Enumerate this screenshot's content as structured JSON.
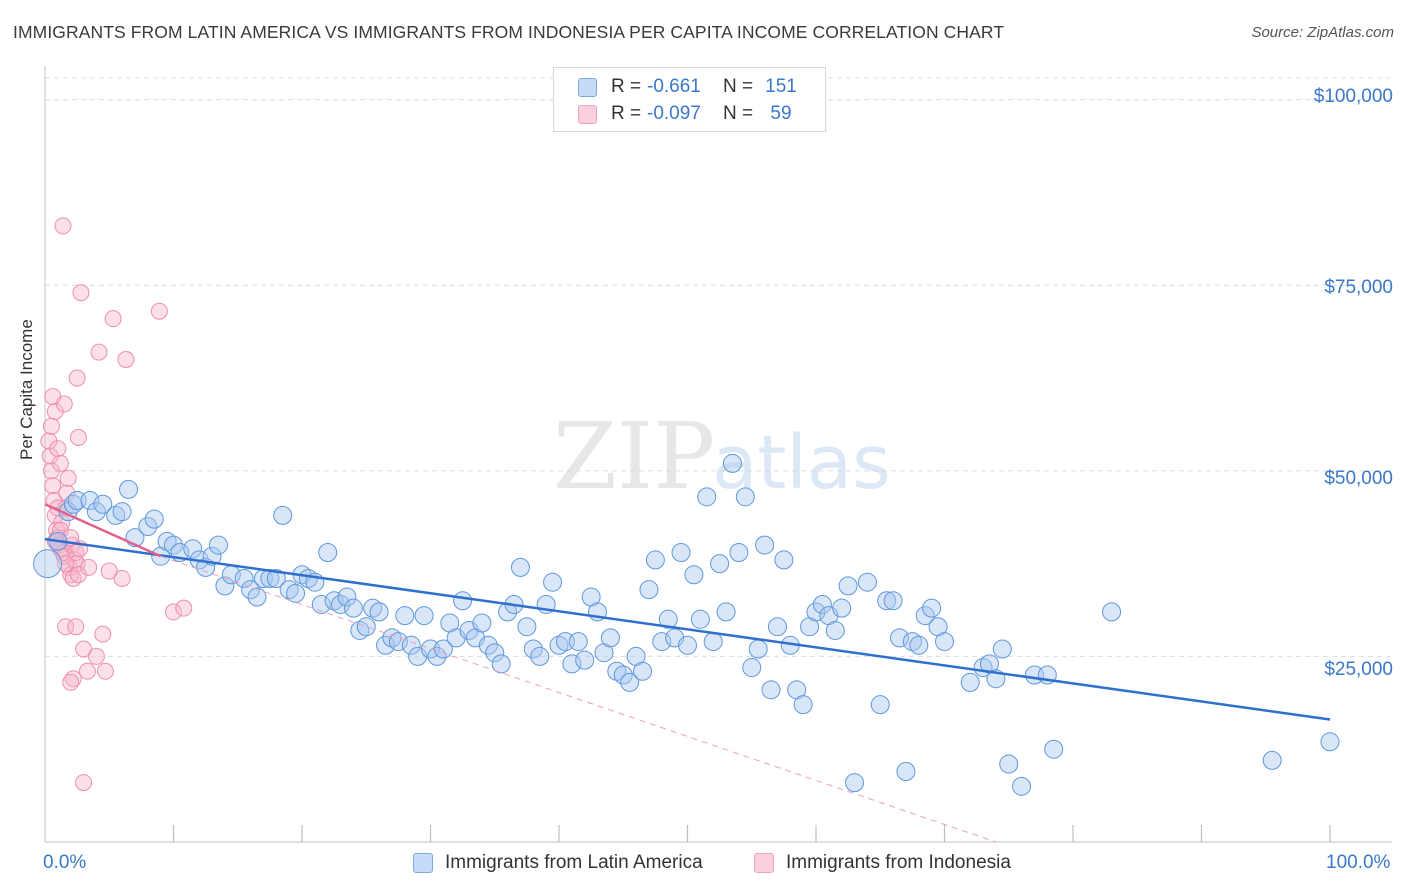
{
  "header": {
    "title": "IMMIGRANTS FROM LATIN AMERICA VS IMMIGRANTS FROM INDONESIA PER CAPITA INCOME CORRELATION CHART",
    "source": "Source: ZipAtlas.com"
  },
  "watermark": {
    "zip": "ZIP",
    "atlas": "atlas"
  },
  "legend": {
    "r_label": "R =",
    "n_label": "N =",
    "rows": [
      {
        "r": "-0.661",
        "n": "151",
        "color": "#6fa3e0"
      },
      {
        "r": "-0.097",
        "n": "59",
        "color": "#f29ab5"
      }
    ]
  },
  "axis": {
    "y_title": "Per Capita Income",
    "y_ticks": [
      "$100,000",
      "$75,000",
      "$50,000",
      "$25,000"
    ],
    "x_min_label": "0.0%",
    "x_max_label": "100.0%"
  },
  "bottom_legend": {
    "series1": "Immigrants from Latin America",
    "series2": "Immigrants from Indonesia"
  },
  "chart_data": {
    "type": "scatter",
    "title": "IMMIGRANTS FROM LATIN AMERICA VS IMMIGRANTS FROM INDONESIA PER CAPITA INCOME CORRELATION CHART",
    "xlabel": "",
    "ylabel": "Per Capita Income",
    "xlim": [
      0,
      100
    ],
    "ylim": [
      0,
      104000
    ],
    "y_ticks": [
      25000,
      50000,
      75000,
      100000
    ],
    "series": [
      {
        "name": "Immigrants from Latin America",
        "color": "#6fa3e0",
        "r": -0.661,
        "n": 151,
        "trend": {
          "x": [
            0,
            100
          ],
          "y": [
            40800,
            16500
          ]
        },
        "points": [
          [
            0.2,
            37500
          ],
          [
            1.0,
            40500
          ],
          [
            1.8,
            44500
          ],
          [
            2.2,
            45500
          ],
          [
            2.5,
            46000
          ],
          [
            3.5,
            46000
          ],
          [
            4.0,
            44500
          ],
          [
            4.5,
            45500
          ],
          [
            5.5,
            44000
          ],
          [
            6.0,
            44500
          ],
          [
            6.5,
            47500
          ],
          [
            7.0,
            41000
          ],
          [
            8.0,
            42500
          ],
          [
            8.5,
            43500
          ],
          [
            9.0,
            38500
          ],
          [
            9.5,
            40500
          ],
          [
            10.0,
            40000
          ],
          [
            10.5,
            39000
          ],
          [
            11.5,
            39500
          ],
          [
            12.0,
            38000
          ],
          [
            12.5,
            37000
          ],
          [
            13.0,
            38500
          ],
          [
            13.5,
            40000
          ],
          [
            14.0,
            34500
          ],
          [
            14.5,
            36000
          ],
          [
            15.5,
            35500
          ],
          [
            16.0,
            34000
          ],
          [
            16.5,
            33000
          ],
          [
            17.0,
            35500
          ],
          [
            17.5,
            35500
          ],
          [
            18.0,
            35500
          ],
          [
            18.5,
            44000
          ],
          [
            19.0,
            34000
          ],
          [
            19.5,
            33500
          ],
          [
            20.0,
            36000
          ],
          [
            20.5,
            35500
          ],
          [
            21.0,
            35000
          ],
          [
            21.5,
            32000
          ],
          [
            22.0,
            39000
          ],
          [
            22.5,
            32500
          ],
          [
            23.0,
            32000
          ],
          [
            23.5,
            33000
          ],
          [
            24.0,
            31500
          ],
          [
            24.5,
            28500
          ],
          [
            25.0,
            29000
          ],
          [
            25.5,
            31500
          ],
          [
            26.0,
            31000
          ],
          [
            26.5,
            26500
          ],
          [
            27.0,
            27500
          ],
          [
            27.5,
            27000
          ],
          [
            28.0,
            30500
          ],
          [
            28.5,
            26500
          ],
          [
            29.0,
            25000
          ],
          [
            29.5,
            30500
          ],
          [
            30.0,
            26000
          ],
          [
            30.5,
            25000
          ],
          [
            31.0,
            26000
          ],
          [
            31.5,
            29500
          ],
          [
            32.0,
            27500
          ],
          [
            32.5,
            32500
          ],
          [
            33.0,
            28500
          ],
          [
            33.5,
            27500
          ],
          [
            34.0,
            29500
          ],
          [
            34.5,
            26500
          ],
          [
            35.0,
            25500
          ],
          [
            35.5,
            24000
          ],
          [
            36.0,
            31000
          ],
          [
            36.5,
            32000
          ],
          [
            37.0,
            37000
          ],
          [
            37.5,
            29000
          ],
          [
            38.0,
            26000
          ],
          [
            38.5,
            25000
          ],
          [
            39.0,
            32000
          ],
          [
            39.5,
            35000
          ],
          [
            40.0,
            26500
          ],
          [
            40.5,
            27000
          ],
          [
            41.0,
            24000
          ],
          [
            41.5,
            27000
          ],
          [
            42.0,
            24500
          ],
          [
            42.5,
            33000
          ],
          [
            43.0,
            31000
          ],
          [
            43.5,
            25500
          ],
          [
            44.0,
            27500
          ],
          [
            44.5,
            23000
          ],
          [
            45.0,
            22500
          ],
          [
            45.5,
            21500
          ],
          [
            46.0,
            25000
          ],
          [
            46.5,
            23000
          ],
          [
            47.0,
            34000
          ],
          [
            47.5,
            38000
          ],
          [
            48.0,
            27000
          ],
          [
            48.5,
            30000
          ],
          [
            49.0,
            27500
          ],
          [
            49.5,
            39000
          ],
          [
            50.0,
            26500
          ],
          [
            50.5,
            36000
          ],
          [
            51.0,
            30000
          ],
          [
            51.5,
            46500
          ],
          [
            52.0,
            27000
          ],
          [
            52.5,
            37500
          ],
          [
            53.0,
            31000
          ],
          [
            53.5,
            51000
          ],
          [
            54.0,
            39000
          ],
          [
            54.5,
            46500
          ],
          [
            55.0,
            23500
          ],
          [
            55.5,
            26000
          ],
          [
            56.0,
            40000
          ],
          [
            56.5,
            20500
          ],
          [
            57.0,
            29000
          ],
          [
            57.5,
            38000
          ],
          [
            58.0,
            26500
          ],
          [
            58.5,
            20500
          ],
          [
            59.0,
            18500
          ],
          [
            59.5,
            29000
          ],
          [
            60.0,
            31000
          ],
          [
            60.5,
            32000
          ],
          [
            61.0,
            30500
          ],
          [
            61.5,
            28500
          ],
          [
            62.0,
            31500
          ],
          [
            62.5,
            34500
          ],
          [
            63.0,
            8000
          ],
          [
            64.0,
            35000
          ],
          [
            65.0,
            18500
          ],
          [
            65.5,
            32500
          ],
          [
            66.0,
            32500
          ],
          [
            66.5,
            27500
          ],
          [
            67.0,
            9500
          ],
          [
            67.5,
            27000
          ],
          [
            68.0,
            26500
          ],
          [
            68.5,
            30500
          ],
          [
            69.0,
            31500
          ],
          [
            69.5,
            29000
          ],
          [
            70.0,
            27000
          ],
          [
            72.0,
            21500
          ],
          [
            73.0,
            23500
          ],
          [
            73.5,
            24000
          ],
          [
            74.0,
            22000
          ],
          [
            74.5,
            26000
          ],
          [
            75.0,
            10500
          ],
          [
            76.0,
            7500
          ],
          [
            77.0,
            22500
          ],
          [
            78.0,
            22500
          ],
          [
            78.5,
            12500
          ],
          [
            83.0,
            31000
          ],
          [
            95.5,
            11000
          ],
          [
            100.0,
            13500
          ]
        ]
      },
      {
        "name": "Immigrants from Indonesia",
        "color": "#f29ab5",
        "r": -0.097,
        "n": 59,
        "trend_solid": {
          "x": [
            0,
            9
          ],
          "y": [
            45500,
            38500
          ]
        },
        "trend_dashed": {
          "x": [
            9,
            74
          ],
          "y": [
            38500,
            0
          ]
        },
        "points": [
          [
            0.3,
            54000
          ],
          [
            0.4,
            52000
          ],
          [
            0.5,
            50000
          ],
          [
            0.6,
            48000
          ],
          [
            0.7,
            46000
          ],
          [
            0.8,
            44000
          ],
          [
            0.9,
            42000
          ],
          [
            1.0,
            41000
          ],
          [
            1.1,
            40000
          ],
          [
            1.2,
            39500
          ],
          [
            1.3,
            43000
          ],
          [
            1.4,
            39000
          ],
          [
            1.5,
            38500
          ],
          [
            1.6,
            45000
          ],
          [
            1.7,
            47000
          ],
          [
            1.8,
            49000
          ],
          [
            1.9,
            37000
          ],
          [
            2.0,
            36000
          ],
          [
            2.1,
            40000
          ],
          [
            2.2,
            35500
          ],
          [
            2.3,
            38000
          ],
          [
            2.4,
            39000
          ],
          [
            2.5,
            37500
          ],
          [
            2.6,
            36000
          ],
          [
            2.7,
            39500
          ],
          [
            0.5,
            56000
          ],
          [
            0.6,
            60000
          ],
          [
            0.8,
            58000
          ],
          [
            1.0,
            53000
          ],
          [
            1.2,
            51000
          ],
          [
            1.5,
            59000
          ],
          [
            1.4,
            83000
          ],
          [
            2.5,
            62500
          ],
          [
            2.6,
            54500
          ],
          [
            2.8,
            74000
          ],
          [
            4.2,
            66000
          ],
          [
            5.3,
            70500
          ],
          [
            6.3,
            65000
          ],
          [
            8.9,
            71500
          ],
          [
            1.6,
            29000
          ],
          [
            2.2,
            22000
          ],
          [
            2.4,
            29000
          ],
          [
            3.0,
            26000
          ],
          [
            3.3,
            23000
          ],
          [
            3.4,
            37000
          ],
          [
            4.0,
            25000
          ],
          [
            4.5,
            28000
          ],
          [
            4.7,
            23000
          ],
          [
            5.0,
            36500
          ],
          [
            6.0,
            35500
          ],
          [
            10.0,
            31000
          ],
          [
            10.8,
            31500
          ],
          [
            2.0,
            21500
          ],
          [
            3.0,
            8000
          ],
          [
            1.0,
            45000
          ],
          [
            1.2,
            42000
          ],
          [
            0.8,
            40500
          ],
          [
            2.0,
            41000
          ],
          [
            1.6,
            37500
          ]
        ]
      }
    ]
  }
}
